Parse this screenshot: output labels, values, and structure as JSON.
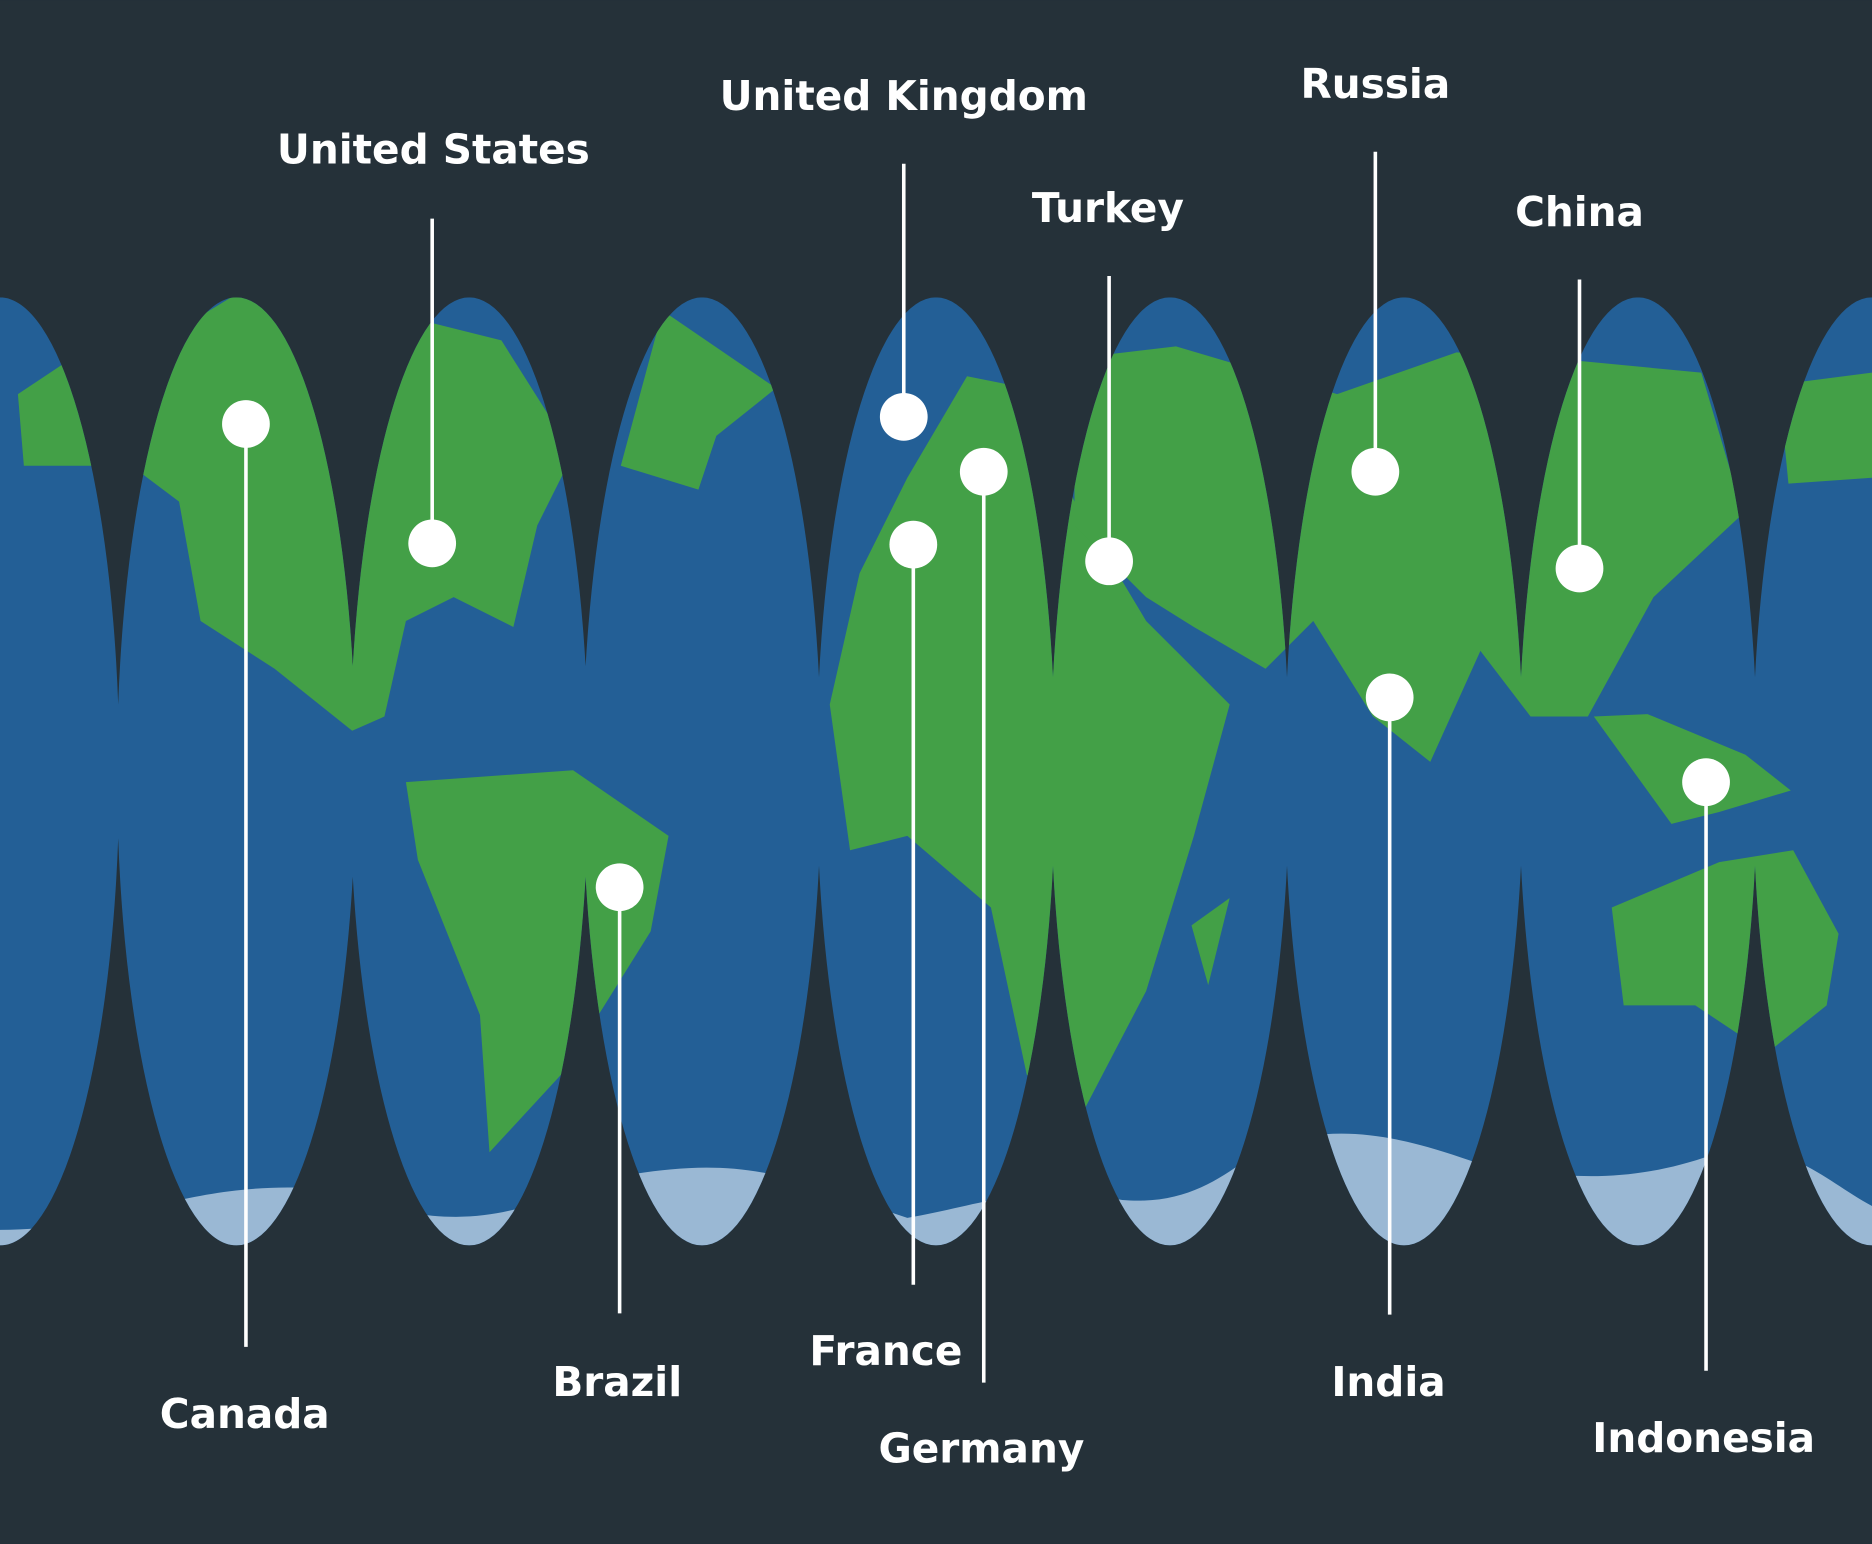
{
  "colors": {
    "background": "#253139",
    "ocean": "#235f96",
    "land": "#43a047",
    "ice": "#9ab8d4",
    "pin": "#ffffff"
  },
  "countries": [
    {
      "name": "Canada"
    },
    {
      "name": "United States"
    },
    {
      "name": "Brazil"
    },
    {
      "name": "United Kingdom"
    },
    {
      "name": "Germany"
    },
    {
      "name": "France"
    },
    {
      "name": "Turkey"
    },
    {
      "name": "Russia"
    },
    {
      "name": "India"
    },
    {
      "name": "China"
    },
    {
      "name": "Indonesia"
    }
  ]
}
